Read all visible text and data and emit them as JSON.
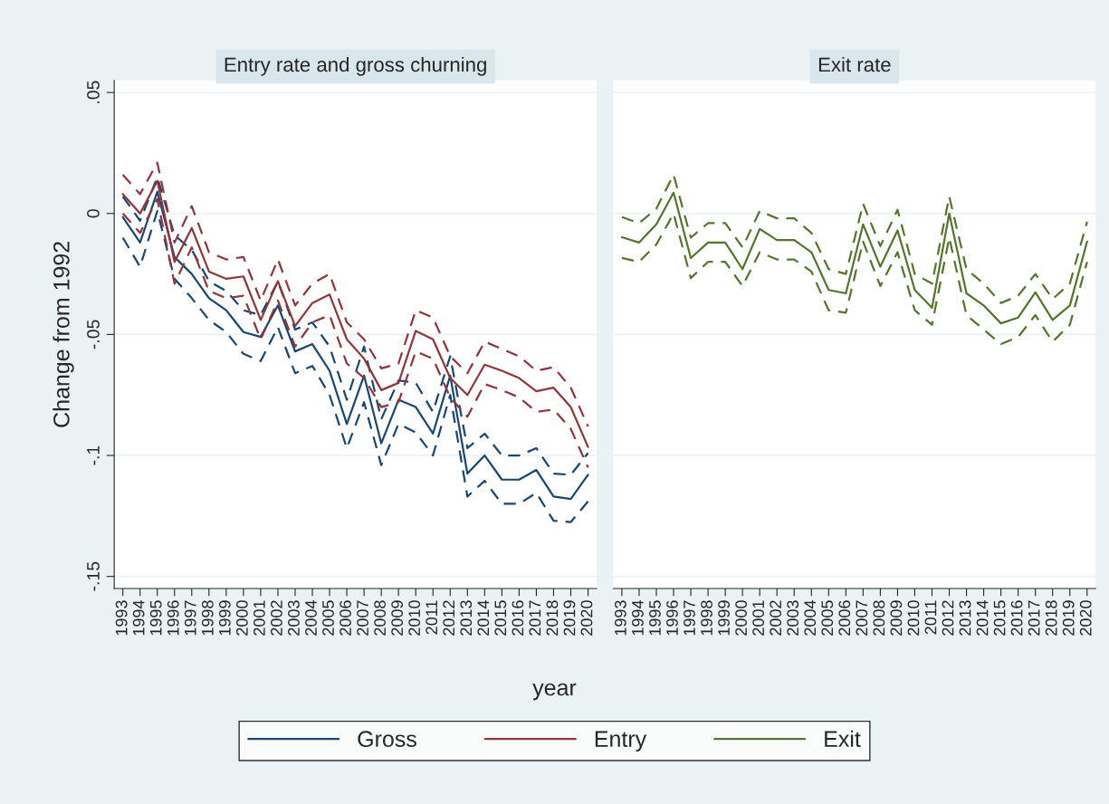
{
  "chart_data": [
    {
      "type": "line",
      "title": "Entry rate and gross churning",
      "ylabel": "Change from 1992",
      "xlabel": "year",
      "x": [
        1993,
        1994,
        1995,
        1996,
        1997,
        1998,
        1999,
        2000,
        2001,
        2002,
        2003,
        2004,
        2005,
        2006,
        2007,
        2008,
        2009,
        2010,
        2011,
        2012,
        2013,
        2014,
        2015,
        2016,
        2017,
        2018,
        2019,
        2020
      ],
      "series": [
        {
          "name": "Gross",
          "color": "#1a476f",
          "values": [
            -0.0015,
            -0.012,
            0.009,
            -0.018,
            -0.025,
            -0.035,
            -0.04,
            -0.049,
            -0.051,
            -0.038,
            -0.057,
            -0.054,
            -0.065,
            -0.087,
            -0.067,
            -0.095,
            -0.077,
            -0.08,
            -0.091,
            -0.067,
            -0.1075,
            -0.1,
            -0.11,
            -0.11,
            -0.106,
            -0.117,
            -0.118,
            -0.108
          ]
        },
        {
          "color": "#1a476f",
          "line_style": "dashed",
          "values": [
            0.007,
            -0.003,
            0.015,
            -0.009,
            -0.015,
            -0.028,
            -0.032,
            -0.04,
            -0.042,
            -0.028,
            -0.048,
            -0.045,
            -0.055,
            -0.077,
            -0.055,
            -0.085,
            -0.069,
            -0.07,
            -0.082,
            -0.059,
            -0.097,
            -0.091,
            -0.1,
            -0.1,
            -0.097,
            -0.1075,
            -0.108,
            -0.099
          ]
        },
        {
          "color": "#1a476f",
          "line_style": "dashed",
          "values": [
            -0.01,
            -0.022,
            0.001,
            -0.027,
            -0.035,
            -0.044,
            -0.049,
            -0.058,
            -0.061,
            -0.047,
            -0.066,
            -0.063,
            -0.075,
            -0.097,
            -0.078,
            -0.104,
            -0.087,
            -0.0905,
            -0.1,
            -0.075,
            -0.117,
            -0.1105,
            -0.12,
            -0.12,
            -0.1155,
            -0.127,
            -0.1275,
            -0.119
          ]
        },
        {
          "name": "Entry",
          "color": "#90353b",
          "values": [
            0.008,
            0.0,
            0.0135,
            -0.02,
            -0.006,
            -0.024,
            -0.027,
            -0.026,
            -0.044,
            -0.028,
            -0.0465,
            -0.037,
            -0.0335,
            -0.052,
            -0.06,
            -0.073,
            -0.07,
            -0.0485,
            -0.052,
            -0.068,
            -0.075,
            -0.0625,
            -0.065,
            -0.068,
            -0.0735,
            -0.072,
            -0.08,
            -0.0965
          ]
        },
        {
          "color": "#90353b",
          "line_style": "dashed",
          "values": [
            0.016,
            0.008,
            0.021,
            -0.012,
            0.003,
            -0.016,
            -0.019,
            -0.018,
            -0.036,
            -0.019,
            -0.038,
            -0.029,
            -0.025,
            -0.045,
            -0.052,
            -0.064,
            -0.062,
            -0.04,
            -0.043,
            -0.059,
            -0.066,
            -0.053,
            -0.056,
            -0.059,
            -0.065,
            -0.0635,
            -0.072,
            -0.088
          ]
        },
        {
          "color": "#90353b",
          "line_style": "dashed",
          "values": [
            0.0,
            -0.008,
            0.006,
            -0.029,
            -0.014,
            -0.032,
            -0.035,
            -0.034,
            -0.052,
            -0.036,
            -0.055,
            -0.045,
            -0.042,
            -0.062,
            -0.068,
            -0.08,
            -0.078,
            -0.057,
            -0.06,
            -0.076,
            -0.084,
            -0.0705,
            -0.073,
            -0.076,
            -0.082,
            -0.081,
            -0.089,
            -0.105
          ]
        }
      ],
      "xlim": [
        1992.5,
        2020.5
      ],
      "ylim": [
        -0.155,
        0.055
      ],
      "xticks": [
        1993,
        1994,
        1995,
        1996,
        1997,
        1998,
        1999,
        2000,
        2001,
        2002,
        2003,
        2004,
        2005,
        2006,
        2007,
        2008,
        2009,
        2010,
        2011,
        2012,
        2013,
        2014,
        2015,
        2016,
        2017,
        2018,
        2019,
        2020
      ],
      "yticks": [
        {
          "value": -0.15,
          "label": "-.15"
        },
        {
          "value": -0.1,
          "label": "-.1"
        },
        {
          "value": -0.05,
          "label": "-.05"
        },
        0,
        {
          "value": 0.05,
          "label": ".05"
        }
      ],
      "grid": "y",
      "legend": "bottom",
      "line_style": "solid"
    },
    {
      "type": "line",
      "title": "Exit rate",
      "x": [
        1993,
        1994,
        1995,
        1996,
        1997,
        1998,
        1999,
        2000,
        2001,
        2002,
        2003,
        2004,
        2005,
        2006,
        2007,
        2008,
        2009,
        2010,
        2011,
        2012,
        2013,
        2014,
        2015,
        2016,
        2017,
        2018,
        2019,
        2020
      ],
      "series": [
        {
          "name": "Exit",
          "color": "#55752f",
          "values": [
            -0.0098,
            -0.012,
            -0.0045,
            0.0086,
            -0.0184,
            -0.012,
            -0.012,
            -0.023,
            -0.0064,
            -0.011,
            -0.011,
            -0.016,
            -0.0316,
            -0.033,
            -0.0045,
            -0.022,
            -0.007,
            -0.0316,
            -0.039,
            0.0,
            -0.033,
            -0.038,
            -0.0454,
            -0.043,
            -0.0326,
            -0.044,
            -0.038,
            -0.0116
          ]
        },
        {
          "color": "#55752f",
          "line_style": "dashed",
          "values": [
            -0.0015,
            -0.004,
            0.002,
            0.016,
            -0.01,
            -0.004,
            -0.004,
            -0.014,
            0.001,
            -0.002,
            -0.002,
            -0.008,
            -0.023,
            -0.025,
            0.004,
            -0.0135,
            0.0015,
            -0.025,
            -0.029,
            0.007,
            -0.023,
            -0.029,
            -0.037,
            -0.034,
            -0.025,
            -0.0353,
            -0.029,
            -0.0034
          ]
        },
        {
          "color": "#55752f",
          "line_style": "dashed",
          "values": [
            -0.0184,
            -0.02,
            -0.0128,
            0.0,
            -0.0267,
            -0.02,
            -0.02,
            -0.03,
            -0.016,
            -0.019,
            -0.019,
            -0.024,
            -0.04,
            -0.041,
            -0.0116,
            -0.03,
            -0.016,
            -0.04,
            -0.046,
            -0.01,
            -0.042,
            -0.048,
            -0.054,
            -0.051,
            -0.042,
            -0.053,
            -0.046,
            -0.02
          ]
        }
      ],
      "xlim": [
        1992.5,
        2020.5
      ],
      "ylim": [
        -0.155,
        0.055
      ],
      "xticks": [
        1993,
        1994,
        1995,
        1996,
        1997,
        1998,
        1999,
        2000,
        2001,
        2002,
        2003,
        2004,
        2005,
        2006,
        2007,
        2008,
        2009,
        2010,
        2011,
        2012,
        2013,
        2014,
        2015,
        2016,
        2017,
        2018,
        2019,
        2020
      ],
      "yticks": [
        {
          "value": -0.15,
          "label": null
        },
        {
          "value": -0.1,
          "label": null
        },
        {
          "value": -0.05,
          "label": null
        },
        {
          "value": 0,
          "label": null
        },
        {
          "value": 0.05,
          "label": null
        }
      ],
      "tick_labels": "x",
      "grid": "y",
      "legend": "bottom",
      "line_style": "solid"
    }
  ]
}
